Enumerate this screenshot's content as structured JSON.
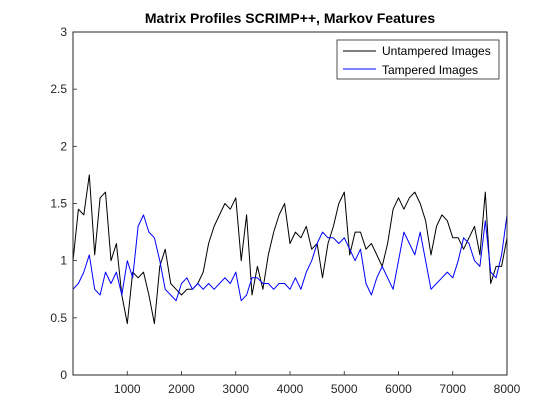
{
  "chart_data": {
    "type": "line",
    "title": "Matrix Profiles SCRIMP++, Markov Features",
    "xlabel": "",
    "ylabel": "",
    "xlim": [
      0,
      8000
    ],
    "ylim": [
      0,
      3
    ],
    "x_ticks": [
      1000,
      2000,
      3000,
      4000,
      5000,
      6000,
      7000,
      8000
    ],
    "y_ticks": [
      0,
      0.5,
      1,
      1.5,
      2,
      2.5,
      3
    ],
    "grid": false,
    "legend_position": "top-right",
    "x_step": 100,
    "series": [
      {
        "name": "Untampered Images",
        "color": "#000000",
        "values": [
          1.0,
          1.45,
          1.4,
          1.75,
          1.05,
          1.55,
          1.6,
          1.0,
          1.15,
          0.7,
          0.45,
          0.9,
          0.85,
          0.9,
          0.7,
          0.45,
          0.95,
          1.1,
          0.8,
          0.75,
          0.7,
          0.75,
          0.75,
          0.8,
          0.9,
          1.15,
          1.3,
          1.4,
          1.5,
          1.45,
          1.55,
          1.0,
          1.4,
          0.7,
          0.95,
          0.75,
          1.05,
          1.25,
          1.4,
          1.5,
          1.15,
          1.25,
          1.2,
          1.3,
          1.1,
          1.15,
          0.85,
          1.15,
          1.3,
          1.5,
          1.6,
          1.05,
          1.25,
          1.25,
          1.1,
          1.15,
          1.05,
          0.95,
          1.15,
          1.45,
          1.55,
          1.45,
          1.55,
          1.6,
          1.5,
          1.35,
          1.05,
          1.3,
          1.4,
          1.35,
          1.2,
          1.2,
          1.1,
          1.2,
          1.3,
          1.05,
          1.6,
          0.8,
          0.95,
          0.95,
          1.2
        ]
      },
      {
        "name": "Tampered Images",
        "color": "#0000ff",
        "values": [
          0.75,
          0.8,
          0.9,
          1.05,
          0.75,
          0.7,
          0.9,
          0.8,
          0.9,
          0.7,
          1.0,
          0.85,
          1.3,
          1.4,
          1.25,
          1.2,
          1.0,
          0.75,
          0.7,
          0.65,
          0.8,
          0.85,
          0.75,
          0.8,
          0.75,
          0.8,
          0.75,
          0.8,
          0.85,
          0.8,
          0.9,
          0.65,
          0.7,
          0.85,
          0.85,
          0.8,
          0.8,
          0.75,
          0.8,
          0.8,
          0.75,
          0.85,
          0.75,
          0.9,
          1.0,
          1.15,
          1.25,
          1.2,
          1.2,
          1.15,
          1.2,
          1.1,
          1.0,
          1.1,
          0.8,
          0.7,
          0.85,
          0.95,
          0.85,
          0.75,
          1.0,
          1.25,
          1.15,
          1.05,
          1.25,
          1.0,
          0.75,
          0.8,
          0.85,
          0.9,
          0.85,
          1.0,
          1.2,
          1.15,
          1.0,
          0.95,
          1.35,
          0.9,
          0.85,
          1.05,
          1.4
        ]
      }
    ]
  }
}
